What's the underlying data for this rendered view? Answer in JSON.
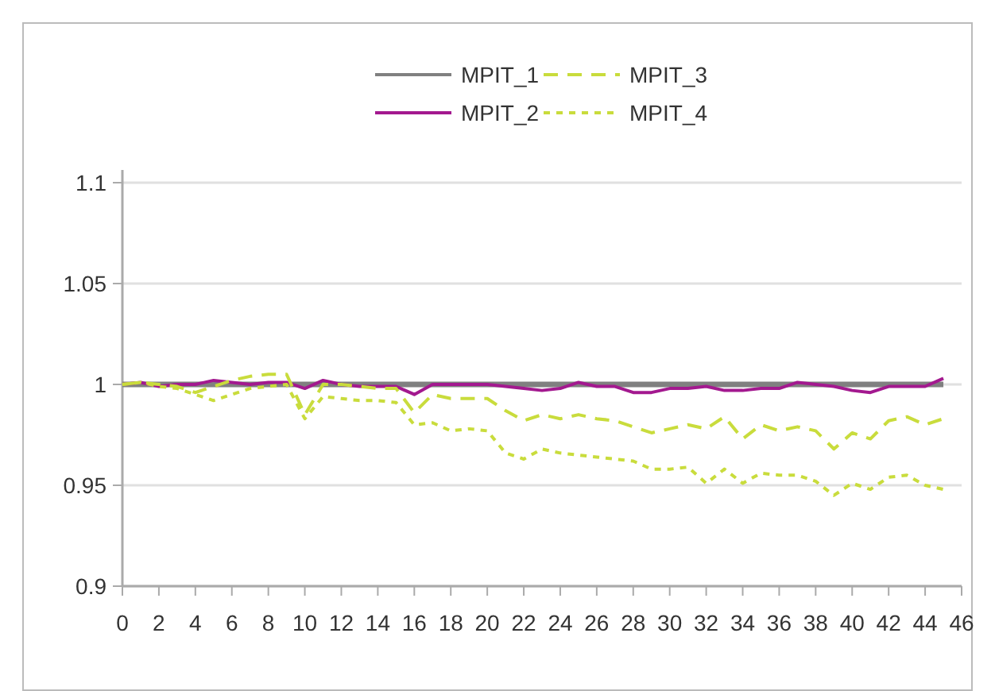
{
  "chart_data": {
    "type": "line",
    "xlim": [
      0,
      46
    ],
    "xticks": [
      0,
      2,
      4,
      6,
      8,
      10,
      12,
      14,
      16,
      18,
      20,
      22,
      24,
      26,
      28,
      30,
      32,
      34,
      36,
      38,
      40,
      42,
      44,
      46
    ],
    "ylim": [
      0.9,
      1.1
    ],
    "yticks": [
      0.9,
      0.95,
      1,
      1.05,
      1.1
    ],
    "grid": "y",
    "legend": "top",
    "marker": "none",
    "x": [
      0,
      1,
      2,
      3,
      4,
      5,
      6,
      7,
      8,
      9,
      10,
      11,
      12,
      13,
      14,
      15,
      16,
      17,
      18,
      19,
      20,
      21,
      22,
      23,
      24,
      25,
      26,
      27,
      28,
      29,
      30,
      31,
      32,
      33,
      34,
      35,
      36,
      37,
      38,
      39,
      40,
      41,
      42,
      43,
      44,
      45
    ],
    "series": [
      {
        "name": "MPIT_1",
        "color": "#808080",
        "line_style": "solid",
        "values": [
          1,
          1,
          1,
          1,
          1,
          1,
          1,
          1,
          1,
          1,
          1,
          1,
          1,
          1,
          1,
          1,
          1,
          1,
          1,
          1,
          1,
          1,
          1,
          1,
          1,
          1,
          1,
          1,
          1,
          1,
          1,
          1,
          1,
          1,
          1,
          1,
          1,
          1,
          1,
          1,
          1,
          1,
          1,
          1,
          1,
          1
        ]
      },
      {
        "name": "MPIT_2",
        "color": "#a3198f",
        "line_style": "solid",
        "values": [
          1,
          1.001,
          0.999,
          1,
          1,
          1.002,
          1.001,
          1,
          1.001,
          1.001,
          0.998,
          1.002,
          1,
          0.999,
          0.999,
          0.999,
          0.995,
          1,
          1,
          1,
          1,
          0.999,
          0.998,
          0.997,
          0.998,
          1.001,
          0.999,
          0.999,
          0.996,
          0.996,
          0.998,
          0.998,
          0.999,
          0.997,
          0.997,
          0.998,
          0.998,
          1.001,
          1,
          0.999,
          0.997,
          0.996,
          0.999,
          0.999,
          0.999,
          1.003
        ]
      },
      {
        "name": "MPIT_3",
        "color": "#c9dc3c",
        "line_style": "dashed",
        "values": [
          1,
          1.001,
          1,
          0.999,
          0.996,
          0.999,
          1.002,
          1.004,
          1.005,
          1.005,
          0.985,
          1,
          1,
          0.999,
          0.998,
          0.998,
          0.986,
          0.995,
          0.993,
          0.993,
          0.993,
          0.987,
          0.982,
          0.985,
          0.983,
          0.985,
          0.983,
          0.982,
          0.979,
          0.976,
          0.978,
          0.98,
          0.978,
          0.984,
          0.973,
          0.98,
          0.977,
          0.979,
          0.977,
          0.968,
          0.976,
          0.973,
          0.982,
          0.984,
          0.98,
          0.983
        ]
      },
      {
        "name": "MPIT_4",
        "color": "#c9dc3c",
        "line_style": "dotted",
        "values": [
          1,
          1.001,
          0.999,
          0.998,
          0.995,
          0.992,
          0.995,
          0.998,
          0.999,
          1,
          0.983,
          0.994,
          0.993,
          0.992,
          0.992,
          0.991,
          0.98,
          0.981,
          0.977,
          0.978,
          0.977,
          0.966,
          0.963,
          0.968,
          0.966,
          0.965,
          0.964,
          0.963,
          0.962,
          0.958,
          0.958,
          0.959,
          0.951,
          0.958,
          0.951,
          0.956,
          0.955,
          0.955,
          0.952,
          0.945,
          0.951,
          0.948,
          0.954,
          0.955,
          0.95,
          0.948
        ]
      }
    ]
  }
}
